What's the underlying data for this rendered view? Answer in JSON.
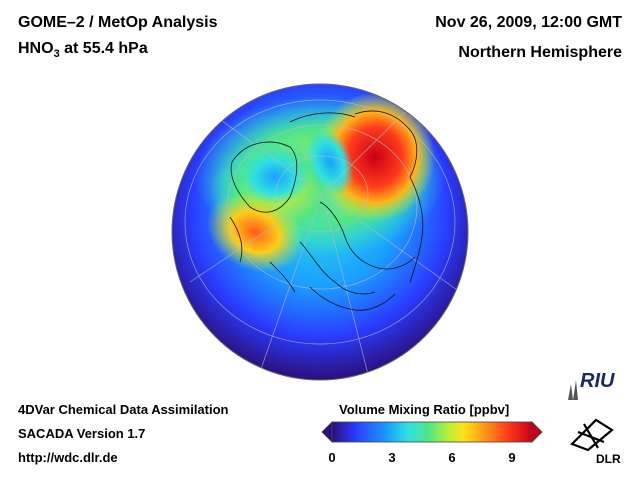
{
  "header": {
    "title_line1": "GOME–2 / MetOp Analysis",
    "title_line2_prefix": "HNO",
    "title_line2_sub": "3",
    "title_line2_suffix": " at 55.4 hPa",
    "date": "Nov 26, 2009, 12:00 GMT",
    "region": "Northern Hemisphere"
  },
  "footer": {
    "line1": "4DVar Chemical Data Assimilation",
    "line2": "SACADA Version 1.7",
    "line3": "http://wdc.dlr.de"
  },
  "colorbar": {
    "title": "Volume Mixing Ratio [ppbv]",
    "min": 0,
    "max": 10,
    "ticks": [
      "0",
      "3",
      "6",
      "9"
    ],
    "tick_values": [
      0,
      3,
      6,
      9
    ],
    "colors": [
      "#2b0f7a",
      "#2a3cff",
      "#1aa0ff",
      "#2fe0e0",
      "#4fe58a",
      "#b6f03a",
      "#ffe21a",
      "#ff9a1a",
      "#ff3a1a",
      "#c8001a"
    ]
  },
  "logos": {
    "riu": "RIU",
    "dlr": "DLR"
  }
}
